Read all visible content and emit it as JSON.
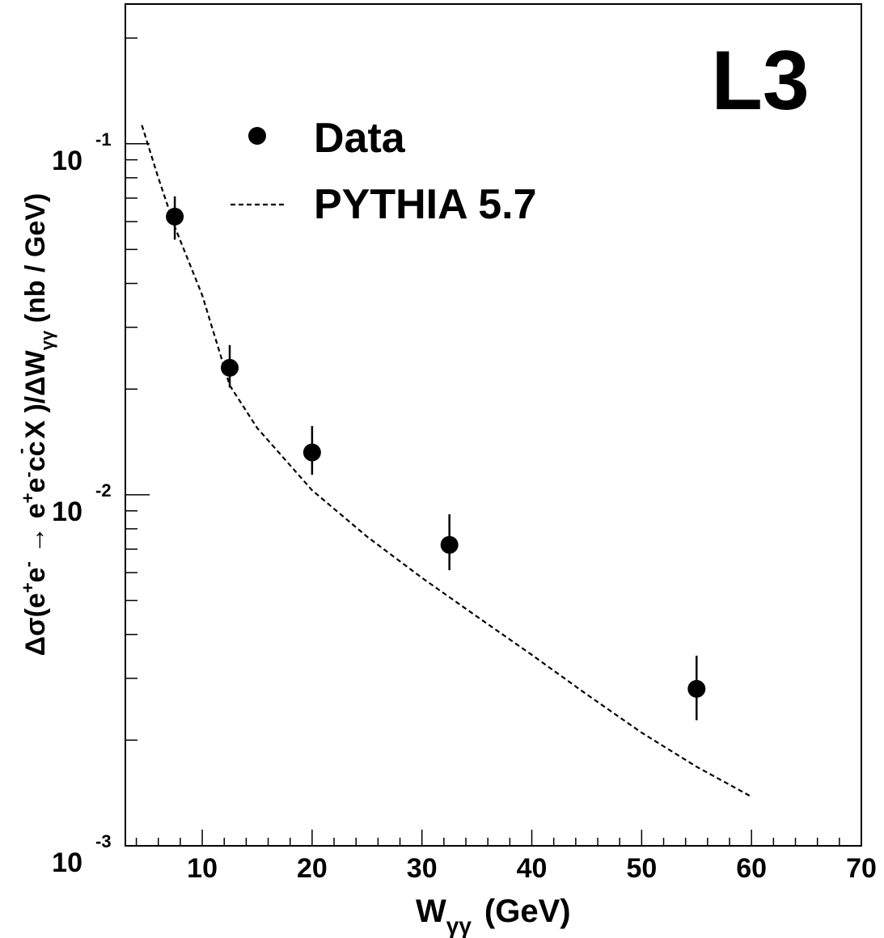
{
  "experiment_label": "L3",
  "legend": {
    "data_label": "Data",
    "model_label": "PYTHIA 5.7"
  },
  "axes": {
    "x_label_main": "W",
    "x_label_sub": "γγ",
    "x_label_unit": "(GeV)",
    "x_tick_labels": [
      "10",
      "20",
      "30",
      "40",
      "50",
      "60",
      "70"
    ],
    "y_tick_base": "10",
    "y_tick_exponents": [
      "-1",
      "-2",
      "-3"
    ],
    "y_label_parts": {
      "p1": "Δσ(e",
      "p2": "+",
      "p3": "e",
      "p4": "-",
      "p5": " → e",
      "p6": "+",
      "p7": "e",
      "p8": "-",
      "p9": "cc",
      "p10": "-",
      "p11": " X )/ΔW",
      "p12": "γγ",
      "p13": "  (nb / GeV)"
    }
  },
  "chart_data": {
    "type": "scatter",
    "x_scale": "linear",
    "y_scale": "log",
    "xlim": [
      3,
      70
    ],
    "ylim": [
      0.001,
      0.25
    ],
    "series": [
      {
        "name": "Data",
        "style": "points-with-error-bars",
        "x": [
          7.5,
          12.5,
          20,
          32.5,
          55
        ],
        "y": [
          0.062,
          0.023,
          0.0132,
          0.0072,
          0.0028
        ],
        "y_err_low": [
          0.0087,
          0.0028,
          0.0018,
          0.0011,
          0.00052
        ],
        "y_err_high": [
          0.0088,
          0.0037,
          0.0025,
          0.0016,
          0.00068
        ]
      },
      {
        "name": "PYTHIA 5.7",
        "style": "dashed-line",
        "x": [
          4.5,
          6,
          7.5,
          10,
          12.5,
          15,
          20,
          25,
          30,
          35,
          40,
          45,
          50,
          55,
          60
        ],
        "y": [
          0.113,
          0.08,
          0.058,
          0.037,
          0.0205,
          0.0155,
          0.0103,
          0.0076,
          0.0058,
          0.0045,
          0.0035,
          0.0027,
          0.0021,
          0.00168,
          0.00138
        ]
      }
    ],
    "colors": {
      "axis": "#000000",
      "marker": "#000000",
      "curve": "#000000"
    }
  }
}
